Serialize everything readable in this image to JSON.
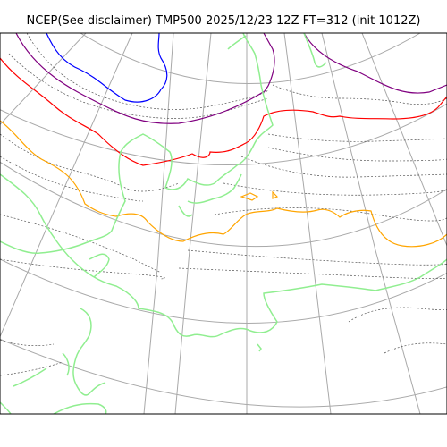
{
  "title": "NCEP(See disclaimer) TMP500 2025/12/23 12Z FT=312 (init 1012Z)",
  "colors": {
    "background": "#ffffff",
    "frame": "#000000",
    "graticule": "#a9a9a9",
    "coastline": "#90ee90",
    "isoline": "#555555",
    "contour_purple": "#800080",
    "contour_blue": "#0000ff",
    "contour_red": "#ff0000",
    "contour_orange": "#ffa500"
  }
}
